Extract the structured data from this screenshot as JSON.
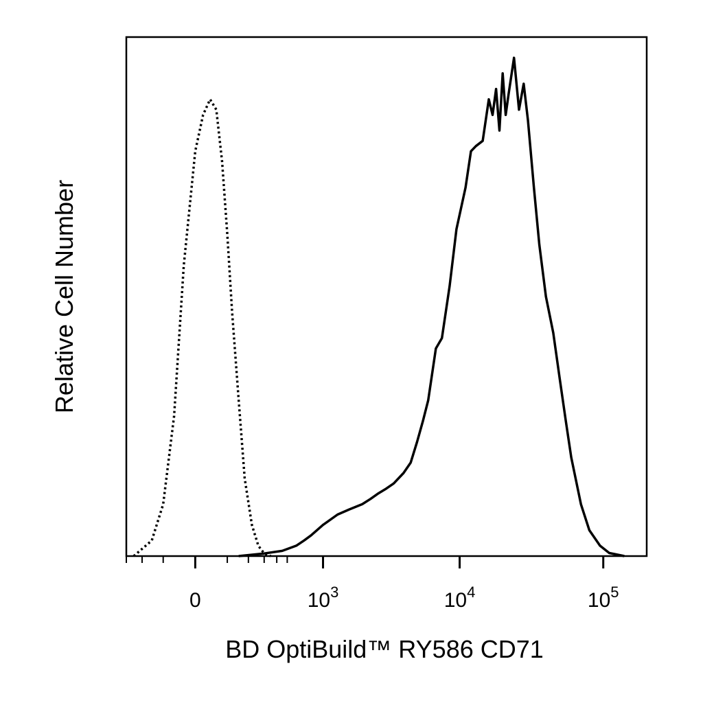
{
  "chart_data": {
    "type": "line",
    "xlabel": "BD OptiBuild™ RY586 CD71",
    "ylabel": "Relative Cell Number",
    "x_scale": "biexponential",
    "xlim": [
      -300,
      200000
    ],
    "ylim": [
      0,
      1
    ],
    "grid": false,
    "legend": "none",
    "x_ticks": [
      {
        "value": 0,
        "base": "0",
        "exp": ""
      },
      {
        "value": 1000,
        "base": "10",
        "exp": "3"
      },
      {
        "value": 10000,
        "base": "10",
        "exp": "4"
      },
      {
        "value": 100000,
        "base": "10",
        "exp": "5"
      }
    ],
    "series": [
      {
        "style": "dotted",
        "x": [
          -250,
          -150,
          -100,
          -60,
          -30,
          0,
          20,
          40,
          60,
          80,
          100,
          120,
          150,
          180,
          220,
          260,
          300,
          350
        ],
        "y": [
          0.0,
          0.03,
          0.1,
          0.27,
          0.56,
          0.78,
          0.85,
          0.88,
          0.86,
          0.76,
          0.62,
          0.47,
          0.3,
          0.15,
          0.06,
          0.02,
          0.005,
          0.0
        ]
      },
      {
        "style": "solid",
        "x": [
          150,
          300,
          450,
          600,
          700,
          800,
          1000,
          1300,
          1600,
          2000,
          2300,
          2600,
          3000,
          3400,
          4000,
          4500,
          5000,
          5500,
          6000,
          6800,
          7500,
          8500,
          9500,
          11000,
          12000,
          13000,
          14500,
          16000,
          17000,
          18000,
          19000,
          20000,
          21000,
          22000,
          24000,
          26000,
          28000,
          30000,
          33000,
          36000,
          40000,
          45000,
          50000,
          55000,
          60000,
          70000,
          80000,
          95000,
          110000,
          140000
        ],
        "y": [
          0.0,
          0.005,
          0.01,
          0.02,
          0.03,
          0.04,
          0.06,
          0.08,
          0.09,
          0.1,
          0.11,
          0.12,
          0.13,
          0.14,
          0.16,
          0.18,
          0.22,
          0.26,
          0.3,
          0.4,
          0.42,
          0.52,
          0.63,
          0.71,
          0.78,
          0.79,
          0.8,
          0.88,
          0.85,
          0.9,
          0.82,
          0.93,
          0.85,
          0.89,
          0.96,
          0.86,
          0.91,
          0.84,
          0.71,
          0.6,
          0.5,
          0.43,
          0.34,
          0.26,
          0.19,
          0.1,
          0.05,
          0.02,
          0.006,
          0.0
        ]
      }
    ]
  }
}
